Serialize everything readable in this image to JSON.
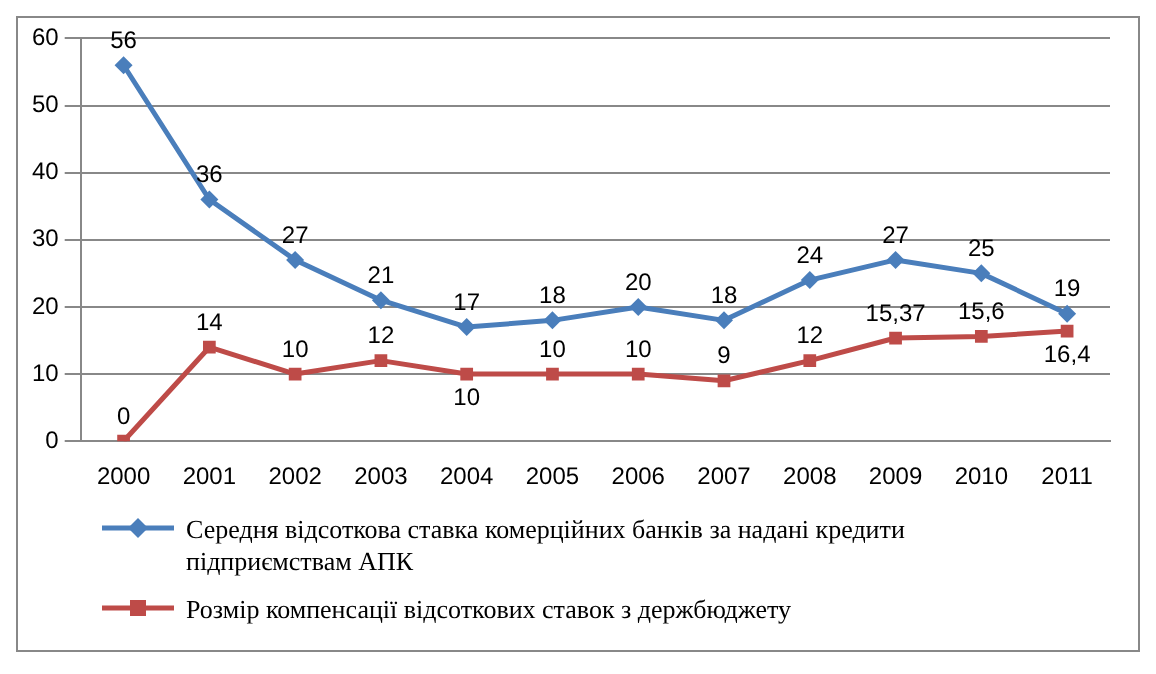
{
  "chart_data": {
    "type": "line",
    "categories": [
      "2000",
      "2001",
      "2002",
      "2003",
      "2004",
      "2005",
      "2006",
      "2007",
      "2008",
      "2009",
      "2010",
      "2011"
    ],
    "series": [
      {
        "name": "Середня відсоткова ставка комерційних банків за надані кредити підприємствам АПК",
        "color": "#4a7ebb",
        "marker": "diamond",
        "values": [
          56,
          36,
          27,
          21,
          17,
          18,
          20,
          18,
          24,
          27,
          25,
          19
        ],
        "value_labels": [
          "56",
          "36",
          "27",
          "21",
          "17",
          "18",
          "20",
          "18",
          "24",
          "27",
          "25",
          "19"
        ]
      },
      {
        "name": "Розмір компенсації відсоткових ставок з держбюджету",
        "color": "#be4b48",
        "marker": "square",
        "values": [
          0,
          14,
          10,
          12,
          10,
          10,
          10,
          9,
          12,
          15.37,
          15.6,
          16.4
        ],
        "value_labels": [
          "0",
          "14",
          "10",
          "12",
          "10",
          "10",
          "10",
          "9",
          "12",
          "15,37",
          "15,6",
          "16,4"
        ]
      }
    ],
    "ylim": [
      0,
      60
    ],
    "yticks": [
      0,
      10,
      20,
      30,
      40,
      50,
      60
    ],
    "grid": "y",
    "legend": "bottom",
    "line_style": "solid"
  }
}
